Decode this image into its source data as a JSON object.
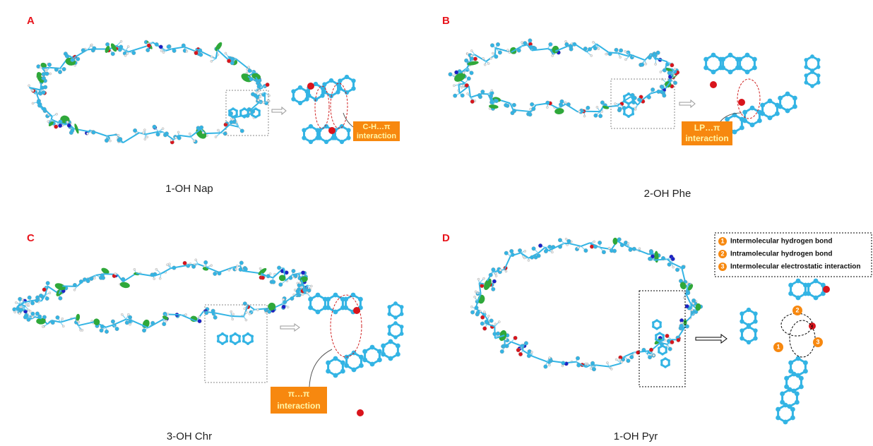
{
  "panels": [
    {
      "letter": "A",
      "caption": "1-OH Nap",
      "callout": [
        "C-H…π",
        "interaction"
      ]
    },
    {
      "letter": "B",
      "caption": "2-OH Phe",
      "callout": [
        "LP…π",
        "interaction"
      ]
    },
    {
      "letter": "C",
      "caption": "3-OH Chr",
      "callout": [
        "π…π",
        "interaction"
      ]
    },
    {
      "letter": "D",
      "caption": "1-OH Pyr",
      "legend": [
        {
          "number": "1",
          "text": "Intermolecular hydrogen bond"
        },
        {
          "number": "2",
          "text": "Intramolecular hydrogen bond"
        },
        {
          "number": "3",
          "text": "Intermolecular electrostatic interaction"
        }
      ],
      "markers": [
        "1",
        "2",
        "3"
      ]
    }
  ]
}
